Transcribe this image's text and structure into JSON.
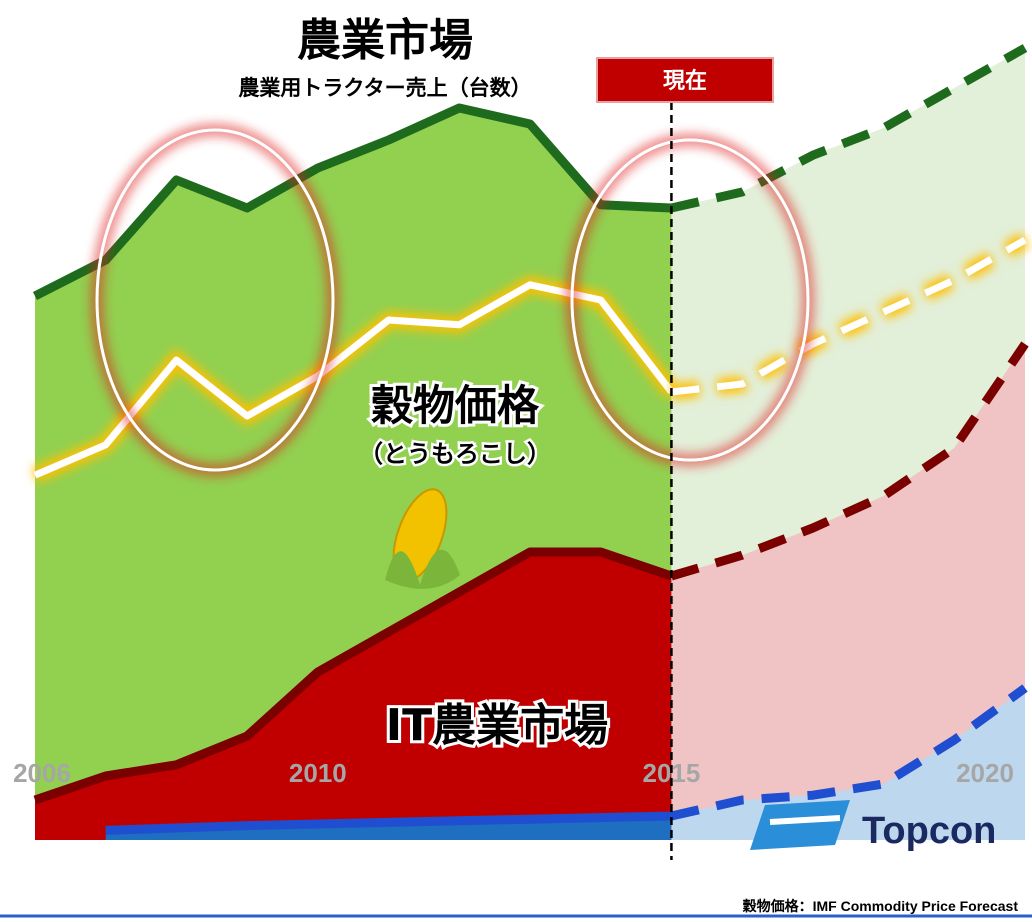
{
  "chart_data": {
    "type": "area",
    "x": [
      2006,
      2007,
      2008,
      2009,
      2010,
      2011,
      2012,
      2013,
      2014,
      2015,
      2016,
      2017,
      2018,
      2019,
      2020
    ],
    "xlim": [
      2006,
      2020
    ],
    "xticks": [
      2006,
      2010,
      2015,
      2020
    ],
    "ylim": [
      0,
      100
    ],
    "series": [
      {
        "name": "農業市場",
        "color": "#1e6b1e",
        "fill": "#92d050",
        "dash": false,
        "values": [
          68,
          72.5,
          82.5,
          79,
          84,
          87.5,
          91.5,
          89.5,
          79.4,
          79,
          null,
          null,
          null,
          null,
          null
        ]
      },
      {
        "color": "#1e6b1e",
        "fill": "#e2efd9",
        "dash": true,
        "values": [
          null,
          null,
          null,
          null,
          null,
          null,
          null,
          null,
          null,
          79,
          81,
          85.6,
          89,
          94,
          99
        ]
      },
      {
        "name": "IT農業市場",
        "color": "#7b0000",
        "fill": "#c00000",
        "dash": false,
        "values": [
          5,
          8,
          9.4,
          13,
          21,
          26,
          31,
          36,
          36,
          33,
          null,
          null,
          null,
          null,
          null
        ]
      },
      {
        "color": "#7b0000",
        "fill": "#f0c4c4",
        "dash": true,
        "values": [
          null,
          null,
          null,
          null,
          null,
          null,
          null,
          null,
          null,
          33,
          35.6,
          39,
          43,
          49,
          62
        ]
      },
      {
        "color": "#1f4fd0",
        "fill": "#1f6fc0",
        "dash": false,
        "values": [
          null,
          1.2,
          1.5,
          1.8,
          2,
          2.2,
          2.4,
          2.6,
          2.8,
          3,
          null,
          null,
          null,
          null,
          null
        ]
      },
      {
        "color": "#1f4fd0",
        "fill": "#bdd7ee",
        "dash": true,
        "values": [
          null,
          null,
          null,
          null,
          null,
          null,
          null,
          null,
          null,
          3,
          5,
          5.6,
          7,
          12.5,
          19
        ]
      },
      {
        "name": "穀物価格",
        "color": "#ffffff",
        "glow": "#ffc000",
        "dash": false,
        "values": [
          45.6,
          49.4,
          60,
          53,
          58,
          65,
          64.4,
          69.4,
          67.5,
          56,
          null,
          null,
          null,
          null,
          null
        ]
      },
      {
        "color": "#ffffff",
        "glow": "#ffc000",
        "dash": true,
        "values": [
          null,
          null,
          null,
          null,
          null,
          null,
          null,
          null,
          null,
          56,
          57,
          62,
          66,
          70,
          75
        ]
      }
    ],
    "subtitle": "農業用トラクター売上（台数）",
    "grain_note": "（とうもろこし）",
    "now_label": "現在",
    "brand": "Topcon",
    "source": "穀物価格：IMF Commodity Price Forecast"
  }
}
